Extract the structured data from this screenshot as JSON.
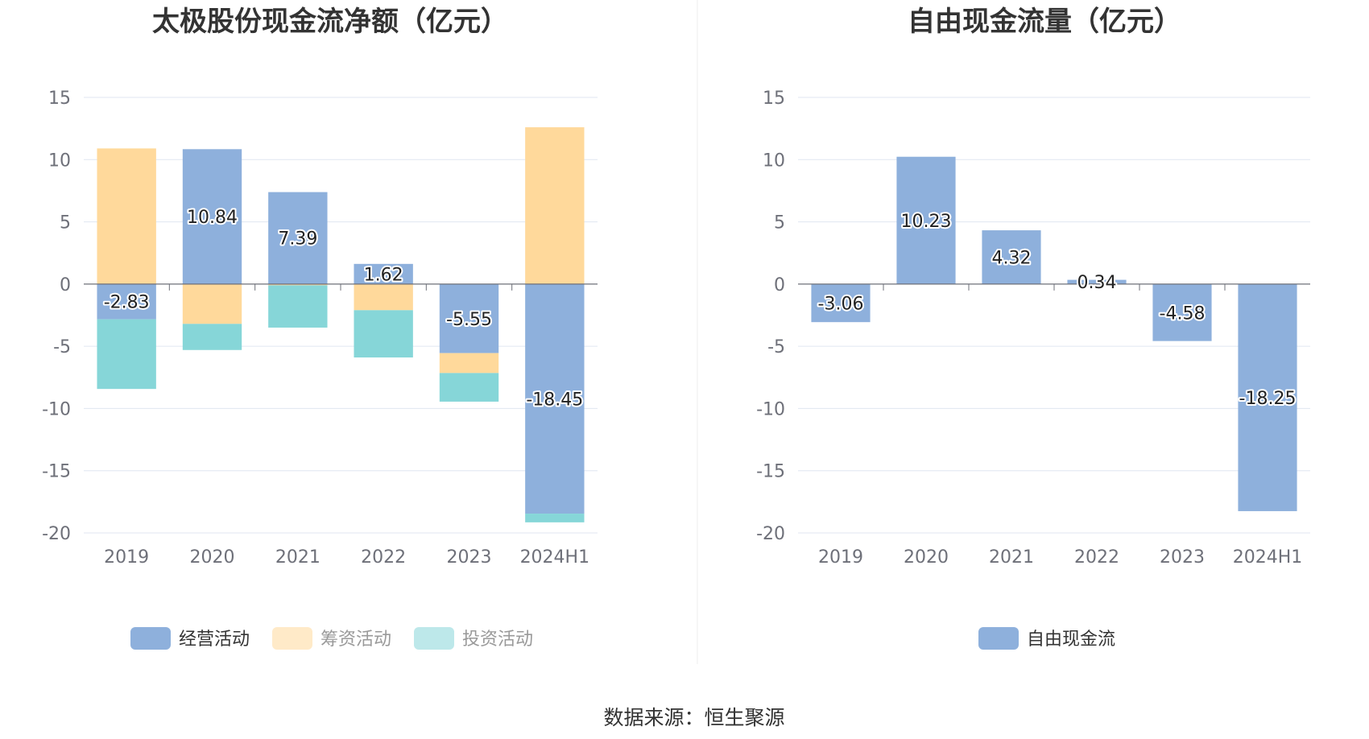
{
  "source_text": "数据来源：恒生聚源",
  "colors": {
    "operating": "#8eb0dc",
    "financing": "#ffd99b",
    "investing": "#86d6d8",
    "free_cash_flow": "#8eb0dc",
    "grid": "#e0e6f1",
    "axis": "#6e7079"
  },
  "chart_data": [
    {
      "type": "bar",
      "stacked": true,
      "title": "太极股份现金流净额（亿元）",
      "categories": [
        "2019",
        "2020",
        "2021",
        "2022",
        "2023",
        "2024H1"
      ],
      "ylim": [
        -20,
        15
      ],
      "yticks": [
        15,
        10,
        5,
        0,
        -5,
        -10,
        -15,
        -20
      ],
      "grid": true,
      "legend_position": "bottom",
      "series": [
        {
          "name": "经营活动",
          "color_key": "operating",
          "values": [
            -2.83,
            10.84,
            7.39,
            1.62,
            -5.55,
            -18.45
          ],
          "labeled": true
        },
        {
          "name": "筹资活动",
          "color_key": "financing",
          "values": [
            10.9,
            -3.2,
            -0.1,
            -2.1,
            -1.6,
            12.6
          ],
          "labeled": false,
          "legend_dim": true
        },
        {
          "name": "投资活动",
          "color_key": "investing",
          "values": [
            -5.6,
            -2.1,
            -3.4,
            -3.8,
            -2.3,
            -0.7
          ],
          "labeled": false,
          "legend_dim": true
        }
      ]
    },
    {
      "type": "bar",
      "stacked": false,
      "title": "自由现金流量（亿元）",
      "categories": [
        "2019",
        "2020",
        "2021",
        "2022",
        "2023",
        "2024H1"
      ],
      "ylim": [
        -20,
        15
      ],
      "yticks": [
        15,
        10,
        5,
        0,
        -5,
        -10,
        -15,
        -20
      ],
      "grid": true,
      "legend_position": "bottom",
      "series": [
        {
          "name": "自由现金流",
          "color_key": "free_cash_flow",
          "values": [
            -3.06,
            10.23,
            4.32,
            0.34,
            -4.58,
            -18.25
          ],
          "labeled": true
        }
      ]
    }
  ]
}
